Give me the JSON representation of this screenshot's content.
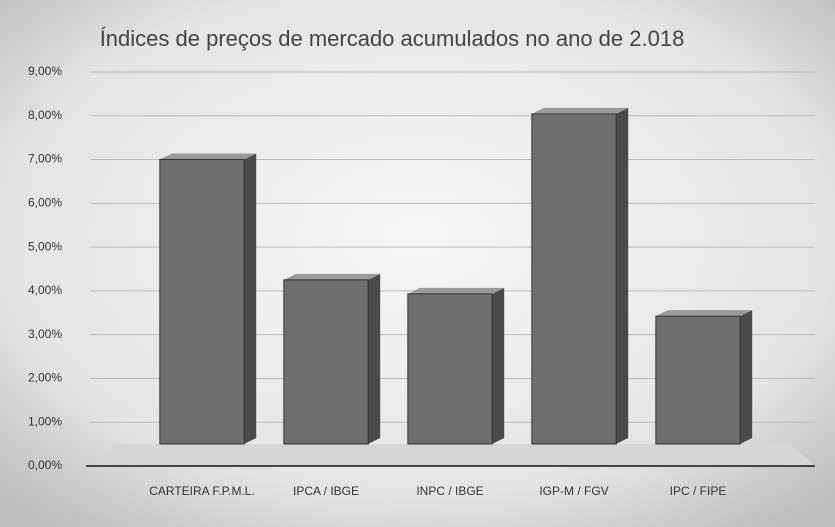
{
  "chart_data": {
    "type": "bar3d",
    "title": "Índices de preços de mercado acumulados no ano de 2.018",
    "categories": [
      "CARTEIRA F.P.M.L.",
      "IPCA / IBGE",
      "INPC / IBGE",
      "IGP-M / FGV",
      "IPC / FIPE"
    ],
    "values": [
      6.5,
      3.75,
      3.43,
      7.54,
      2.92
    ],
    "color": "#6e6e6e",
    "ylim": [
      0,
      9
    ],
    "yticks": [
      {
        "value": 0,
        "label": "0,00%"
      },
      {
        "value": 1,
        "label": "1,00%"
      },
      {
        "value": 2,
        "label": "2,00%"
      },
      {
        "value": 3,
        "label": "3,00%"
      },
      {
        "value": 4,
        "label": "4,00%"
      },
      {
        "value": 5,
        "label": "5,00%"
      },
      {
        "value": 6,
        "label": "6,00%"
      },
      {
        "value": 7,
        "label": "7,00%"
      },
      {
        "value": 8,
        "label": "8,00%"
      },
      {
        "value": 9,
        "label": "9,00%"
      }
    ],
    "grid": true
  }
}
